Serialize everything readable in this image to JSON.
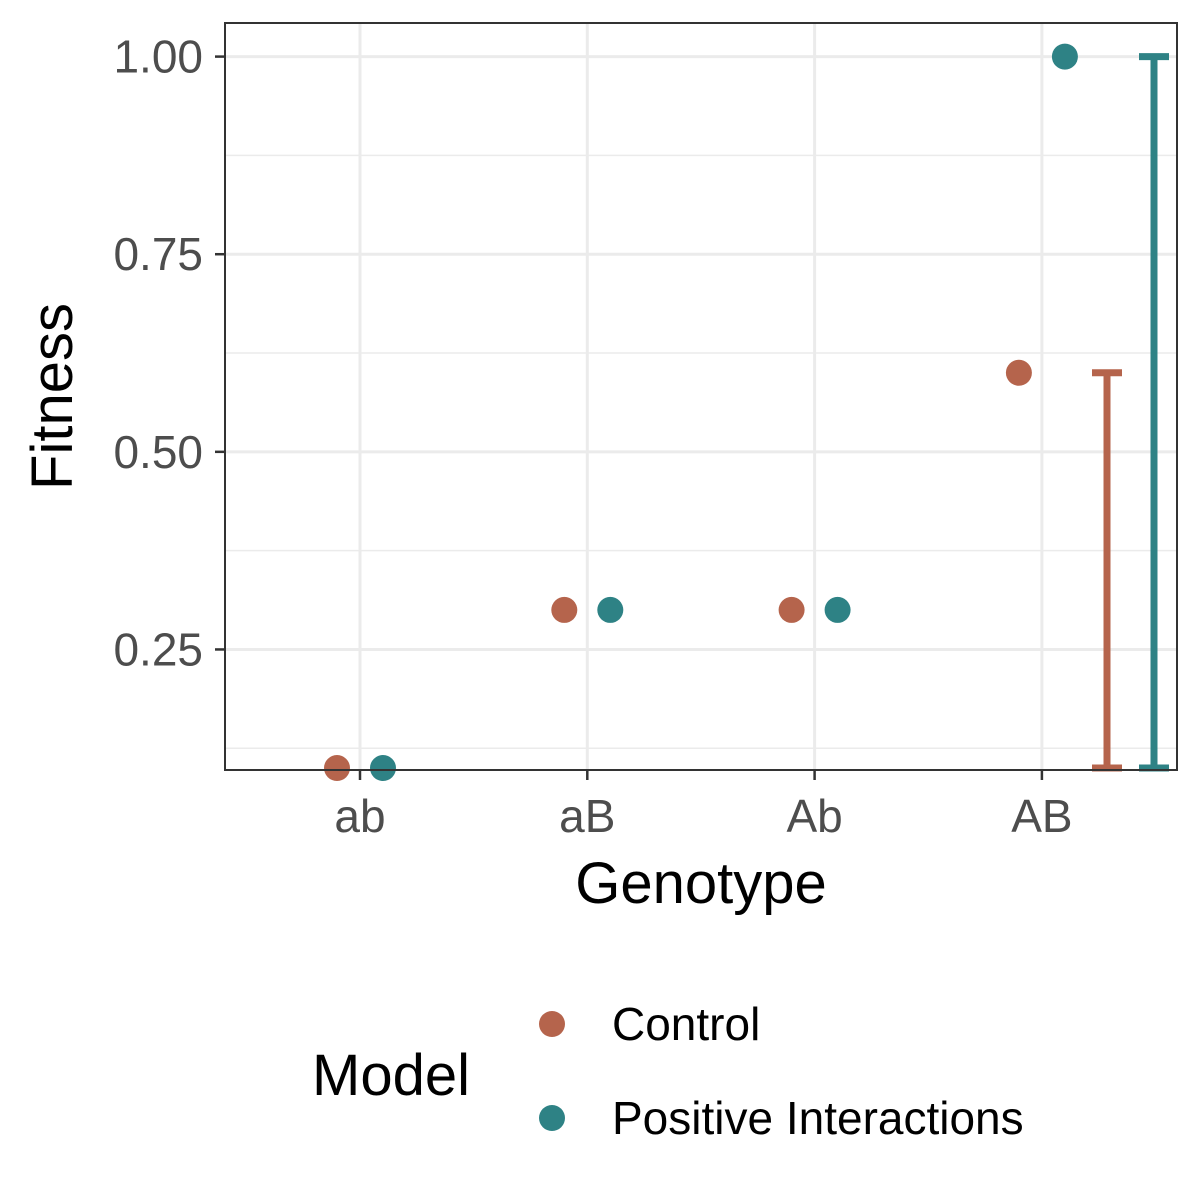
{
  "chart_data": {
    "type": "scatter",
    "xlabel": "Genotype",
    "ylabel": "Fitness",
    "categories": [
      "ab",
      "aB",
      "Ab",
      "AB"
    ],
    "ylim": [
      0.0975,
      1.0425
    ],
    "yticks": [
      0.25,
      0.5,
      0.75,
      1.0
    ],
    "ytick_labels": [
      "0.25",
      "0.50",
      "0.75",
      "1.00"
    ],
    "grid": true,
    "legend": {
      "title": "Model",
      "placement": "bottom"
    },
    "series": [
      {
        "name": "Control",
        "color": "#b5644c",
        "values": [
          0.1,
          0.3,
          0.3,
          0.6
        ],
        "range": [
          0.1,
          0.6
        ]
      },
      {
        "name": "Positive Interactions",
        "color": "#2e8285",
        "values": [
          0.1,
          0.3,
          0.3,
          1.0
        ],
        "range": [
          0.1,
          1.0
        ]
      }
    ]
  }
}
